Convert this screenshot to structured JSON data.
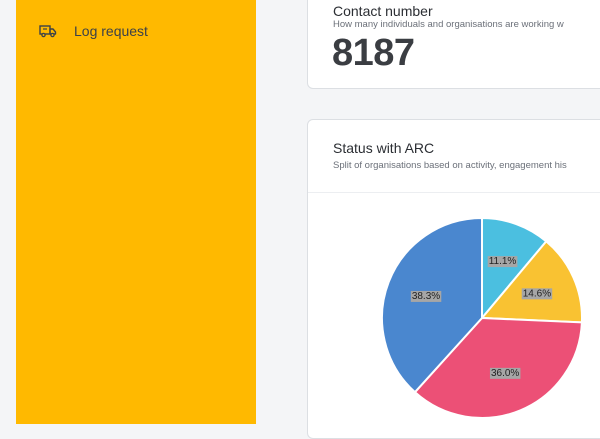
{
  "sidebar": {
    "items": [
      {
        "label": "Log request",
        "icon": "truck-icon"
      }
    ],
    "background": "#ffb900"
  },
  "contact_card": {
    "title": "Contact number",
    "subtitle": "How many individuals and organisations are working w",
    "value": "8187"
  },
  "status_card": {
    "title": "Status with ARC",
    "subtitle": "Split of organisations based on activity, engagement his"
  },
  "chart_data": {
    "type": "pie",
    "slices": [
      {
        "label": "11.1%",
        "value": 11.1,
        "color": "#4bbfe0"
      },
      {
        "label": "14.6%",
        "value": 14.6,
        "color": "#f9c232"
      },
      {
        "label": "36.0%",
        "value": 36.0,
        "color": "#ec5076"
      },
      {
        "label": "38.3%",
        "value": 38.3,
        "color": "#4a87cf"
      }
    ]
  }
}
